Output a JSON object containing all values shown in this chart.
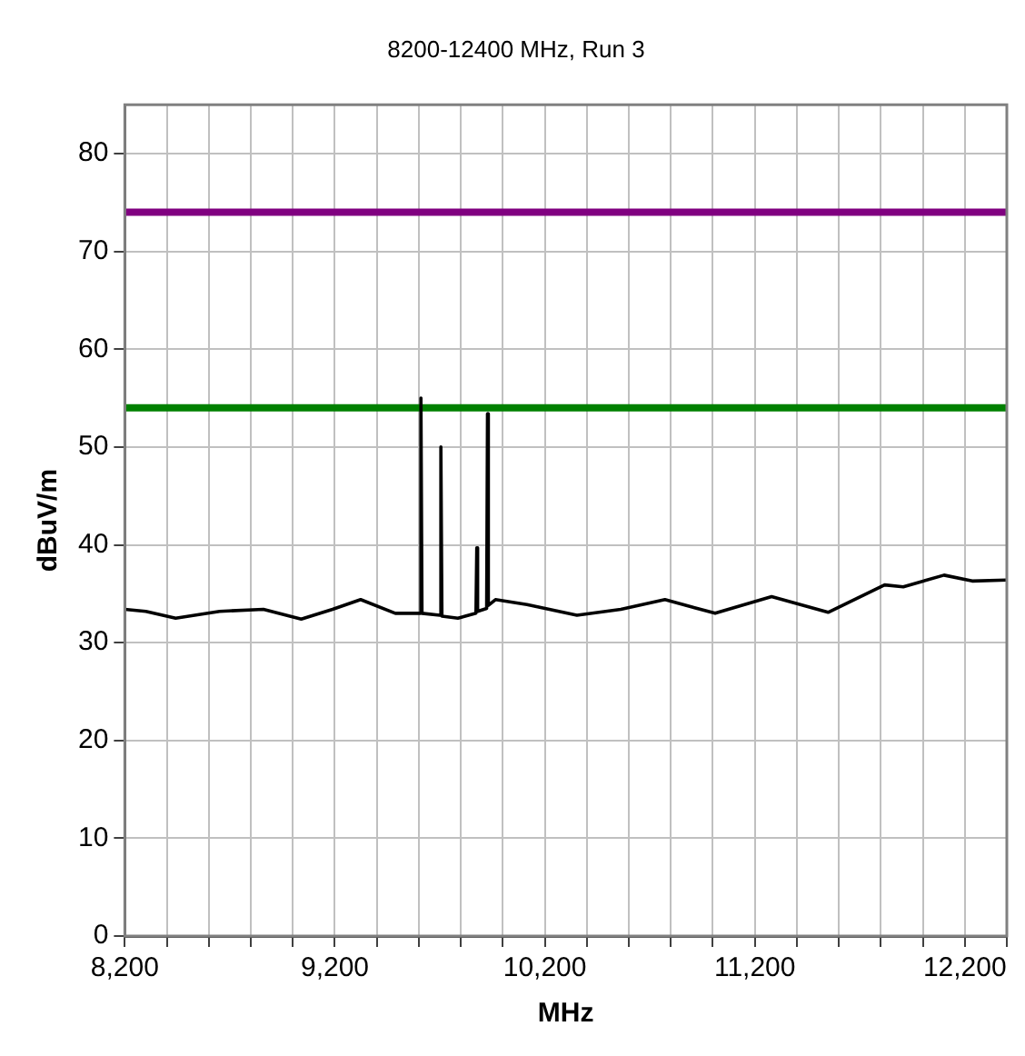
{
  "chart_data": {
    "type": "line",
    "title": "8200-12400 MHz, Run 3",
    "xlabel": "MHz",
    "ylabel": "dBuV/m",
    "x": [
      8200,
      8300,
      8442,
      8651,
      8860,
      9040,
      9189,
      9323,
      9488,
      9605,
      9610,
      9615,
      9700,
      9705,
      9710,
      9786,
      9872,
      9876,
      9880,
      9923,
      9927,
      9931,
      9965,
      10115,
      10353,
      10562,
      10772,
      11011,
      11280,
      11549,
      11818,
      11907,
      12101,
      12235,
      12400
    ],
    "series": [
      {
        "color": "#000000",
        "values": [
          33.4,
          33.2,
          32.5,
          33.2,
          33.4,
          32.4,
          33.4,
          34.4,
          33.0,
          33.0,
          55.0,
          33.0,
          32.8,
          50.0,
          32.7,
          32.5,
          33.0,
          39.7,
          33.2,
          33.5,
          53.4,
          33.8,
          34.4,
          33.9,
          32.8,
          33.4,
          34.4,
          33.0,
          34.7,
          33.1,
          35.9,
          35.7,
          36.9,
          36.3,
          36.4
        ]
      }
    ],
    "xlim": [
      8200,
      12400
    ],
    "xticks": [
      {
        "value": 8200,
        "label": "8,200"
      },
      {
        "value": 8400,
        "label": null
      },
      {
        "value": 8600,
        "label": null
      },
      {
        "value": 8800,
        "label": null
      },
      {
        "value": 9000,
        "label": null
      },
      {
        "value": 9200,
        "label": "9,200"
      },
      {
        "value": 9400,
        "label": null
      },
      {
        "value": 9600,
        "label": null
      },
      {
        "value": 9800,
        "label": null
      },
      {
        "value": 10000,
        "label": null
      },
      {
        "value": 10200,
        "label": "10,200"
      },
      {
        "value": 10400,
        "label": null
      },
      {
        "value": 10600,
        "label": null
      },
      {
        "value": 10800,
        "label": null
      },
      {
        "value": 11000,
        "label": null
      },
      {
        "value": 11200,
        "label": "11,200"
      },
      {
        "value": 11400,
        "label": null
      },
      {
        "value": 11600,
        "label": null
      },
      {
        "value": 11800,
        "label": null
      },
      {
        "value": 12000,
        "label": null
      },
      {
        "value": 12200,
        "label": "12,200"
      },
      {
        "value": 12400,
        "label": null
      }
    ],
    "ylim": [
      0,
      85
    ],
    "yticks": [
      0,
      10,
      20,
      30,
      40,
      50,
      60,
      70,
      80
    ],
    "ref_lines": [
      {
        "axis": "y",
        "value": 74,
        "color": "#800080"
      },
      {
        "axis": "y",
        "value": 54,
        "color": "#008000"
      }
    ],
    "grid": true,
    "legend": false,
    "marker": "none",
    "line_style": "solid"
  }
}
